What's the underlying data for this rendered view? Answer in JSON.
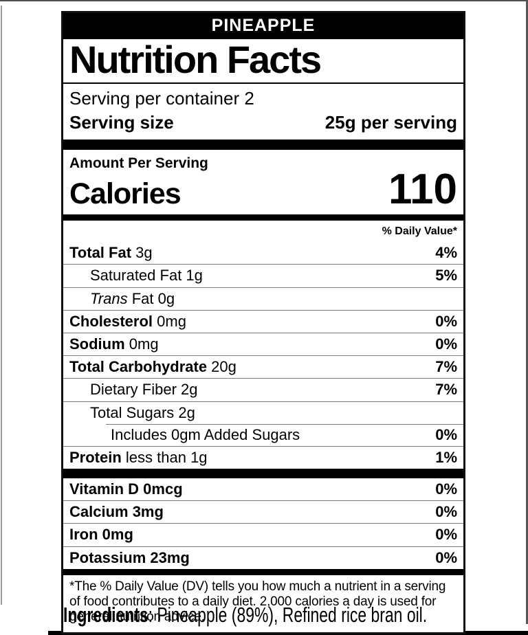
{
  "page": {
    "background_color": "#ffffff",
    "accent_color": "#000000",
    "separator_color": "#7b7b7b"
  },
  "label": {
    "product_name": "PINEAPPLE",
    "title": "Nutrition Facts",
    "servings_per_container": "Serving per container 2",
    "serving_size": {
      "label": "Serving size",
      "value": "25g per serving"
    },
    "amount_per_serving": "Amount Per Serving",
    "calories": {
      "label": "Calories",
      "value": "110"
    },
    "daily_value_header": "% Daily Value*",
    "nutrients": [
      {
        "name": "Total Fat",
        "amount": "3g",
        "dv": "4%",
        "bold_name": true,
        "indent": 0
      },
      {
        "name": "Saturated Fat",
        "amount": "1g",
        "dv": "5%",
        "bold_name": false,
        "indent": 1
      },
      {
        "name_italic": "Trans",
        "name": "Fat",
        "amount": "0g",
        "dv": "",
        "bold_name": false,
        "indent": 1
      },
      {
        "name": "Cholesterol",
        "amount": "0mg",
        "dv": "0%",
        "bold_name": true,
        "indent": 0
      },
      {
        "name": "Sodium",
        "amount": "0mg",
        "dv": "0%",
        "bold_name": true,
        "indent": 0
      },
      {
        "name": "Total Carbohydrate",
        "amount": "20g",
        "dv": "7%",
        "bold_name": true,
        "indent": 0
      },
      {
        "name": "Dietary Fiber",
        "amount": "2g",
        "dv": "7%",
        "bold_name": false,
        "indent": 1
      },
      {
        "name": "Total Sugars",
        "amount": "2g",
        "dv": "",
        "bold_name": false,
        "indent": 1
      },
      {
        "name": "Includes 0gm Added Sugars",
        "amount": "",
        "dv": "0%",
        "bold_name": false,
        "indent": 2,
        "partial_top_border": true
      },
      {
        "name": "Protein",
        "amount": "less than 1g",
        "dv": "1%",
        "bold_name": true,
        "indent": 0
      }
    ],
    "micronutrients": [
      {
        "name": "Vitamin D 0mcg",
        "dv": "0%"
      },
      {
        "name": "Calcium 3mg",
        "dv": "0%"
      },
      {
        "name": "Iron 0mg",
        "dv": "0%"
      },
      {
        "name": "Potassium 23mg",
        "dv": "0%"
      }
    ],
    "footnote": "*The % Daily Value (DV) tells you how much a nutrient in a serving of food contributes to a daily diet. 2,000 calories a day is used for general nutrition advice."
  },
  "ingredients": {
    "label": "Ingredients",
    "text": ": Pineapple (89%), Refined rice bran oil."
  }
}
